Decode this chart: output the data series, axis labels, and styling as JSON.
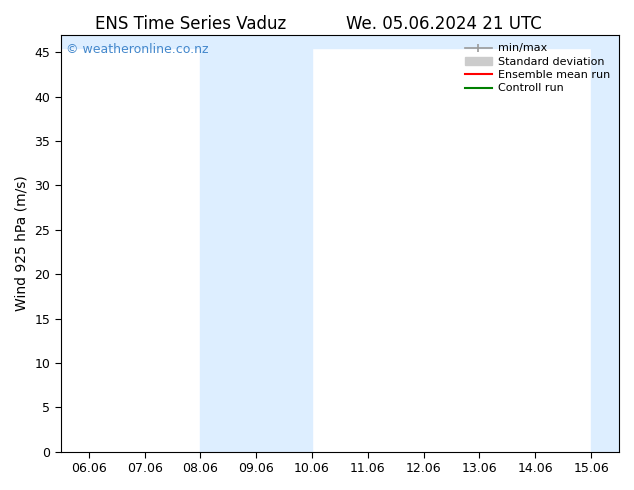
{
  "title_left": "ENS Time Series Vaduz",
  "title_right": "We. 05.06.2024 21 UTC",
  "ylabel": "Wind 925 hPa (m/s)",
  "xlabel": "",
  "watermark": "© weatheronline.co.nz",
  "ylim": [
    0,
    47
  ],
  "yticks": [
    0,
    5,
    10,
    15,
    20,
    25,
    30,
    35,
    40,
    45
  ],
  "xtick_labels": [
    "06.06",
    "07.06",
    "08.06",
    "09.06",
    "10.06",
    "11.06",
    "12.06",
    "13.06",
    "14.06",
    "15.06"
  ],
  "xtick_positions": [
    0,
    1,
    2,
    3,
    4,
    5,
    6,
    7,
    8,
    9
  ],
  "xlim": [
    -0.5,
    9.5
  ],
  "shaded_regions": [
    {
      "xmin": 2.0,
      "xmax": 4.0,
      "color": "#ddeeff"
    },
    {
      "xmin": 9.0,
      "xmax": 9.5,
      "color": "#ddeeff"
    }
  ],
  "top_shaded": {
    "ymin": 45.5,
    "ymax": 47,
    "color": "#ddeeff"
  },
  "bg_color": "#ffffff",
  "plot_bg_color": "#ffffff",
  "tick_color": "#000000",
  "title_fontsize": 12,
  "axis_label_fontsize": 10,
  "tick_fontsize": 9,
  "watermark_color": "#4488cc",
  "watermark_fontsize": 9
}
